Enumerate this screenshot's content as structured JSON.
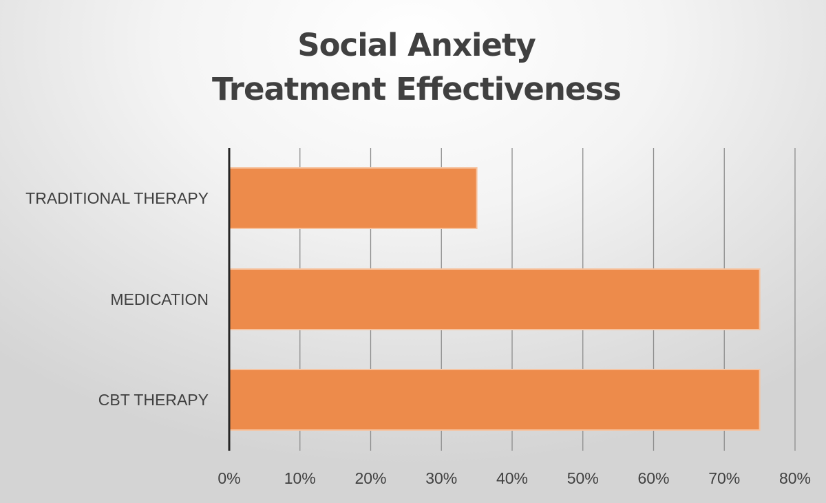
{
  "chart_data": {
    "type": "bar",
    "orientation": "horizontal",
    "title": "Social Anxiety Treatment Effectiveness",
    "title_lines": [
      "Social Anxiety",
      "Treatment Effectiveness"
    ],
    "categories": [
      "TRADITIONAL THERAPY",
      "MEDICATION",
      "CBT THERAPY"
    ],
    "values": [
      0.35,
      0.75,
      0.75
    ],
    "xlim": [
      0,
      0.8
    ],
    "x_ticks": [
      0,
      0.1,
      0.2,
      0.3,
      0.4,
      0.5,
      0.6,
      0.7,
      0.8
    ],
    "x_tick_labels": [
      "0%",
      "10%",
      "20%",
      "30%",
      "40%",
      "50%",
      "60%",
      "70%",
      "80%"
    ],
    "xlabel": "",
    "ylabel": "",
    "grid": "vertical",
    "legend": "none",
    "colors": {
      "bar": "#ed8b4b",
      "bar_edge": "#f6c3a0",
      "grid": "#8c8c8c",
      "axis": "#262626",
      "text": "#404040"
    }
  }
}
